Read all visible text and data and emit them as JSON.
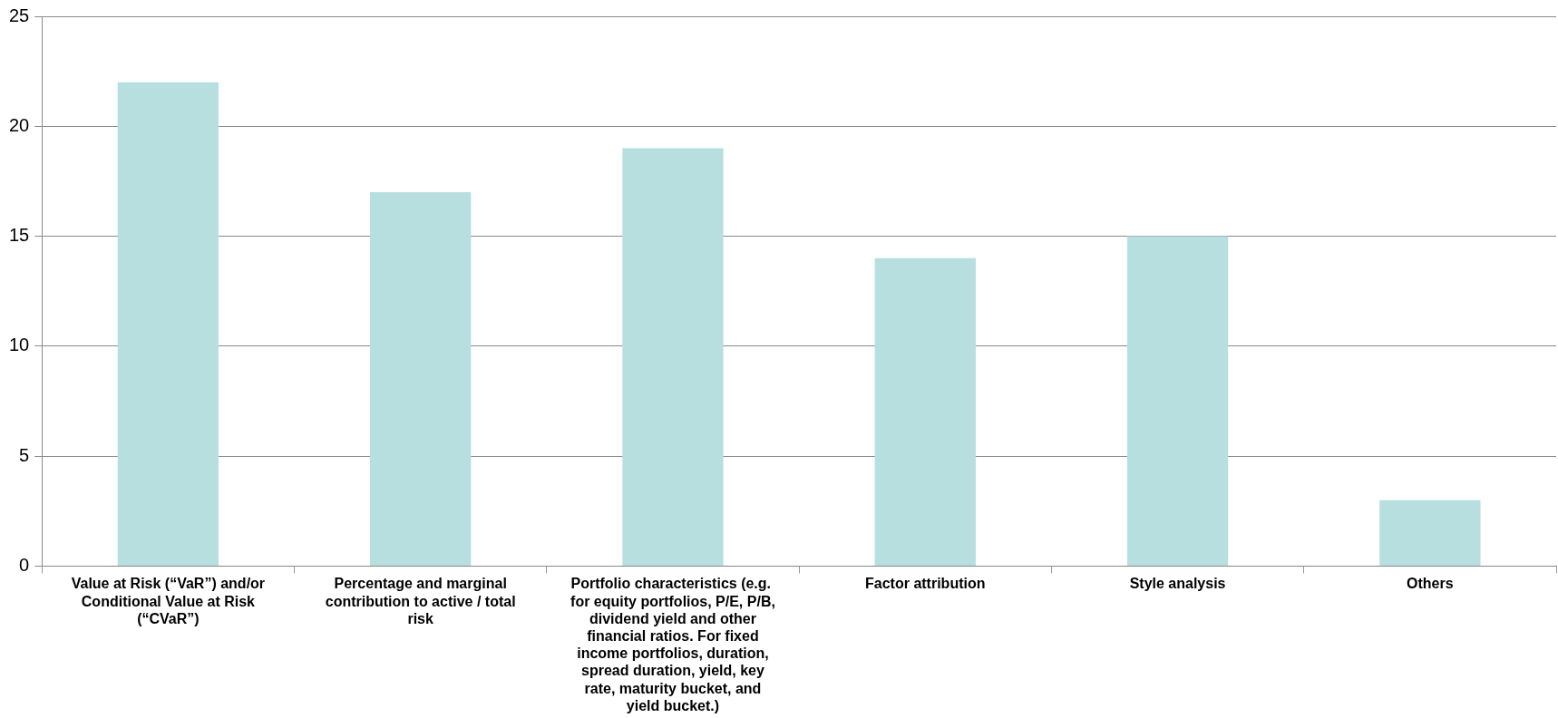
{
  "chart_data": {
    "type": "bar",
    "categories": [
      "Value at Risk (“VaR”) and/or Conditional Value at Risk (“CVaR”)",
      "Percentage and marginal contribution to active / total risk",
      "Portfolio characteristics (e.g.  for equity portfolios, P/E, P/B, dividend yield and other financial ratios. For fixed income portfolios, duration, spread duration, yield, key rate, maturity bucket, and yield bucket.)",
      "Factor attribution",
      "Style analysis",
      "Others"
    ],
    "values": [
      22,
      17,
      19,
      14,
      15,
      3
    ],
    "color": "#b7dfe0",
    "ylim": [
      0,
      25
    ],
    "yticks": [
      0,
      5,
      10,
      15,
      20,
      25
    ],
    "grid": "y",
    "legend": false
  }
}
